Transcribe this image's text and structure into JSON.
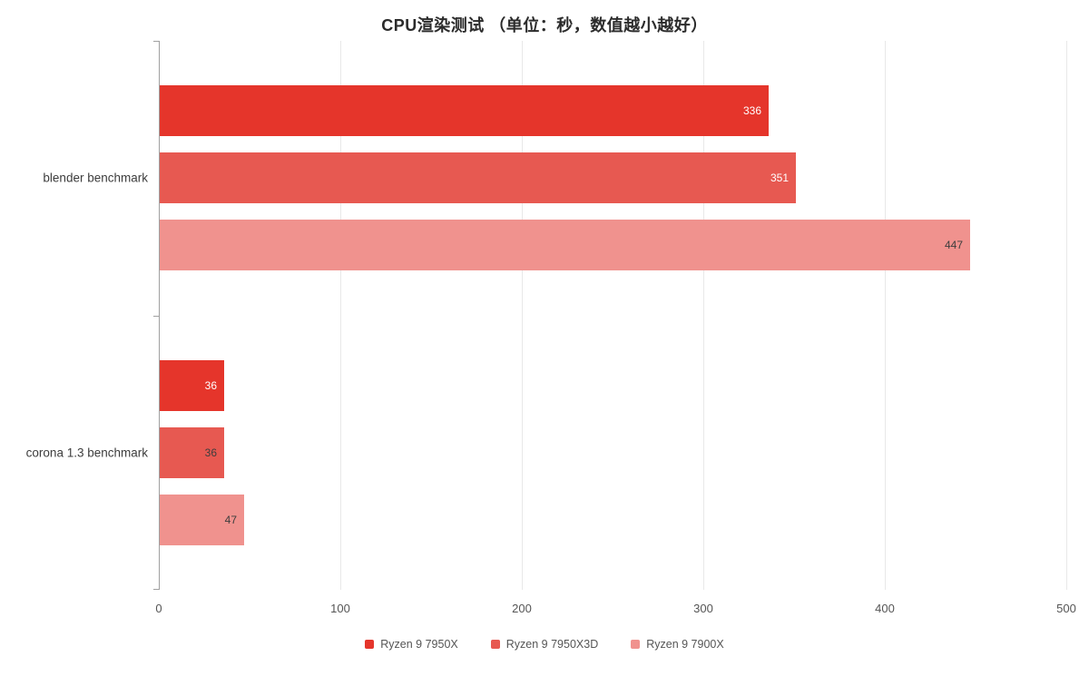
{
  "title": "CPU渲染测试 （单位：秒，数值越小越好）",
  "chart_data": {
    "type": "bar",
    "orientation": "horizontal",
    "title": "CPU渲染测试 （单位：秒，数值越小越好）",
    "categories": [
      "blender benchmark",
      "corona 1.3 benchmark"
    ],
    "series": [
      {
        "name": "Ryzen 9 7950X",
        "color": "#e5352b",
        "values": [
          336,
          36
        ]
      },
      {
        "name": "Ryzen 9 7950X3D",
        "color": "#e75951",
        "values": [
          351,
          36
        ]
      },
      {
        "name": "Ryzen 9 7900X",
        "color": "#f0928e",
        "values": [
          447,
          47
        ]
      }
    ],
    "value_label_colors": [
      [
        "#ffffff",
        "#ffffff"
      ],
      [
        "#ffffff",
        "#3d3d3d"
      ],
      [
        "#3d3d3d",
        "#3d3d3d"
      ]
    ],
    "xlabel": "",
    "ylabel": "",
    "xlim": [
      0,
      500
    ],
    "x_ticks": [
      0,
      100,
      200,
      300,
      400,
      500
    ],
    "grid": true,
    "legend_position": "bottom"
  }
}
